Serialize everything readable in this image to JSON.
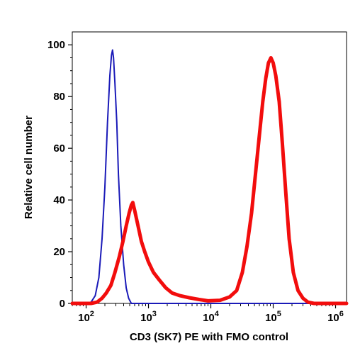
{
  "chart_data": {
    "type": "line",
    "xlabel": "CD3 (SK7) PE with FMO control",
    "ylabel": "Relative cell number",
    "x_scale": "log",
    "xlim": [
      60,
      1500000
    ],
    "ylim": [
      0,
      105
    ],
    "x_ticks": [
      {
        "value": 100,
        "base": "10",
        "exp": "2"
      },
      {
        "value": 1000,
        "base": "10",
        "exp": "3"
      },
      {
        "value": 10000,
        "base": "10",
        "exp": "4"
      },
      {
        "value": 100000,
        "base": "10",
        "exp": "5"
      },
      {
        "value": 1000000,
        "base": "10",
        "exp": "6"
      }
    ],
    "y_ticks": [
      0,
      20,
      40,
      60,
      80,
      100
    ],
    "grid": false,
    "legend": "none",
    "series": [
      {
        "color": "#1a1ab8",
        "line_width": 2,
        "points": [
          [
            60,
            0
          ],
          [
            95,
            0
          ],
          [
            120,
            0.5
          ],
          [
            140,
            3
          ],
          [
            160,
            10
          ],
          [
            180,
            25
          ],
          [
            200,
            45
          ],
          [
            220,
            70
          ],
          [
            240,
            88
          ],
          [
            255,
            96
          ],
          [
            265,
            98
          ],
          [
            275,
            95
          ],
          [
            290,
            85
          ],
          [
            310,
            70
          ],
          [
            330,
            50
          ],
          [
            360,
            30
          ],
          [
            400,
            15
          ],
          [
            440,
            6
          ],
          [
            480,
            2
          ],
          [
            530,
            0
          ],
          [
            600,
            0
          ],
          [
            1000,
            0
          ],
          [
            1500000,
            0
          ]
        ]
      },
      {
        "color": "#f20d0d",
        "line_width": 5,
        "points": [
          [
            60,
            0
          ],
          [
            120,
            0
          ],
          [
            150,
            0.5
          ],
          [
            180,
            2
          ],
          [
            210,
            4
          ],
          [
            250,
            7
          ],
          [
            290,
            12
          ],
          [
            340,
            18
          ],
          [
            390,
            24
          ],
          [
            440,
            30
          ],
          [
            490,
            35
          ],
          [
            530,
            38
          ],
          [
            560,
            39
          ],
          [
            600,
            36
          ],
          [
            680,
            30
          ],
          [
            770,
            24
          ],
          [
            870,
            20
          ],
          [
            1000,
            16
          ],
          [
            1200,
            12
          ],
          [
            1500,
            9
          ],
          [
            1900,
            6
          ],
          [
            2400,
            4
          ],
          [
            3200,
            3
          ],
          [
            4500,
            2.2
          ],
          [
            6500,
            1.5
          ],
          [
            9000,
            1
          ],
          [
            14000,
            1.2
          ],
          [
            20000,
            2.5
          ],
          [
            26000,
            5
          ],
          [
            32000,
            12
          ],
          [
            38000,
            22
          ],
          [
            45000,
            35
          ],
          [
            52000,
            50
          ],
          [
            60000,
            65
          ],
          [
            68000,
            78
          ],
          [
            76000,
            87
          ],
          [
            84000,
            93
          ],
          [
            92000,
            95
          ],
          [
            100000,
            93
          ],
          [
            110000,
            88
          ],
          [
            125000,
            78
          ],
          [
            140000,
            62
          ],
          [
            160000,
            42
          ],
          [
            180000,
            25
          ],
          [
            210000,
            12
          ],
          [
            250000,
            5
          ],
          [
            300000,
            2
          ],
          [
            360000,
            0.5
          ],
          [
            450000,
            0
          ],
          [
            1500000,
            0
          ]
        ]
      }
    ]
  }
}
